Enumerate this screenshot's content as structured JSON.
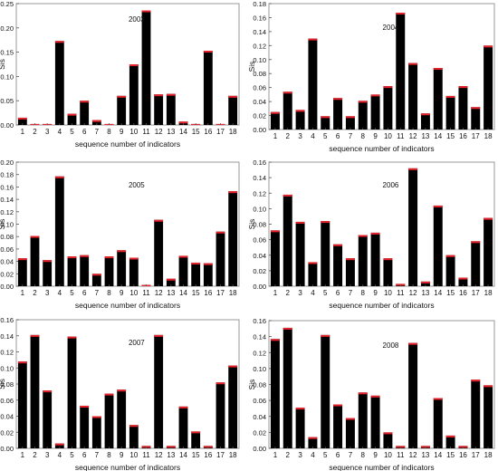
{
  "chart_data": [
    {
      "type": "bar",
      "title": "2003",
      "xlabel": "sequence number of indicators",
      "ylabel": "Sis",
      "categories": [
        "1",
        "2",
        "3",
        "4",
        "5",
        "6",
        "7",
        "8",
        "9",
        "10",
        "11",
        "12",
        "13",
        "14",
        "15",
        "16",
        "17",
        "18"
      ],
      "values": [
        0.015,
        0.002,
        0.002,
        0.173,
        0.023,
        0.05,
        0.01,
        0.002,
        0.06,
        0.125,
        0.236,
        0.063,
        0.064,
        0.007,
        0.002,
        0.153,
        0.002,
        0.06
      ],
      "ylim": [
        0,
        0.25
      ],
      "yticks": [
        "0.00",
        "0.05",
        "0.10",
        "0.15",
        "0.20",
        "0.25"
      ]
    },
    {
      "type": "bar",
      "title": "2004",
      "xlabel": "sequence number of indicators",
      "ylabel": "Sis",
      "categories": [
        "1",
        "2",
        "3",
        "4",
        "5",
        "6",
        "7",
        "8",
        "9",
        "10",
        "11",
        "12",
        "13",
        "14",
        "15",
        "16",
        "17",
        "18"
      ],
      "values": [
        0.025,
        0.054,
        0.028,
        0.13,
        0.019,
        0.045,
        0.019,
        0.041,
        0.05,
        0.062,
        0.167,
        0.095,
        0.023,
        0.088,
        0.048,
        0.062,
        0.032,
        0.12
      ],
      "ylim": [
        0,
        0.18
      ],
      "yticks": [
        "0.00",
        "0.02",
        "0.04",
        "0.06",
        "0.08",
        "0.10",
        "0.12",
        "0.14",
        "0.16",
        "0.18"
      ]
    },
    {
      "type": "bar",
      "title": "2005",
      "xlabel": "sequence number of indicators",
      "ylabel": "Sis",
      "categories": [
        "1",
        "2",
        "3",
        "4",
        "5",
        "6",
        "7",
        "8",
        "9",
        "10",
        "11",
        "12",
        "13",
        "14",
        "15",
        "16",
        "17",
        "18"
      ],
      "values": [
        0.045,
        0.081,
        0.042,
        0.177,
        0.048,
        0.05,
        0.02,
        0.048,
        0.058,
        0.046,
        0.002,
        0.107,
        0.012,
        0.049,
        0.038,
        0.037,
        0.088,
        0.153
      ],
      "ylim": [
        0,
        0.2
      ],
      "yticks": [
        "0.00",
        "0.02",
        "0.04",
        "0.06",
        "0.08",
        "0.10",
        "0.12",
        "0.14",
        "0.16",
        "0.18",
        "0.20"
      ]
    },
    {
      "type": "bar",
      "title": "2006",
      "xlabel": "sequence number of indicators",
      "ylabel": "Sis",
      "categories": [
        "1",
        "2",
        "3",
        "4",
        "5",
        "6",
        "7",
        "8",
        "9",
        "10",
        "11",
        "12",
        "13",
        "14",
        "15",
        "16",
        "17",
        "18"
      ],
      "values": [
        0.072,
        0.118,
        0.083,
        0.031,
        0.084,
        0.054,
        0.036,
        0.066,
        0.069,
        0.036,
        0.003,
        0.152,
        0.006,
        0.104,
        0.04,
        0.011,
        0.058,
        0.088
      ],
      "ylim": [
        0,
        0.16
      ],
      "yticks": [
        "0.00",
        "0.02",
        "0.04",
        "0.06",
        "0.08",
        "0.10",
        "0.12",
        "0.14",
        "0.16"
      ]
    },
    {
      "type": "bar",
      "title": "2007",
      "xlabel": "sequence number of indicators",
      "ylabel": "Sis",
      "categories": [
        "1",
        "2",
        "3",
        "4",
        "5",
        "6",
        "7",
        "8",
        "9",
        "10",
        "11",
        "12",
        "13",
        "14",
        "15",
        "16",
        "17",
        "18"
      ],
      "values": [
        0.108,
        0.141,
        0.072,
        0.006,
        0.139,
        0.053,
        0.04,
        0.068,
        0.073,
        0.029,
        0.003,
        0.141,
        0.003,
        0.052,
        0.021,
        0.003,
        0.082,
        0.103
      ],
      "ylim": [
        0,
        0.16
      ],
      "yticks": [
        "0.00",
        "0.02",
        "0.04",
        "0.06",
        "0.08",
        "0.10",
        "0.12",
        "0.14",
        "0.16"
      ]
    },
    {
      "type": "bar",
      "title": "2008",
      "xlabel": "sequence number of indicators",
      "ylabel": "Sis",
      "categories": [
        "1",
        "2",
        "3",
        "4",
        "5",
        "6",
        "7",
        "8",
        "9",
        "10",
        "11",
        "12",
        "13",
        "14",
        "15",
        "16",
        "17",
        "18"
      ],
      "values": [
        0.137,
        0.151,
        0.051,
        0.014,
        0.142,
        0.055,
        0.038,
        0.07,
        0.066,
        0.02,
        0.003,
        0.132,
        0.003,
        0.063,
        0.016,
        0.003,
        0.086,
        0.079
      ],
      "ylim": [
        0,
        0.16
      ],
      "yticks": [
        "0.00",
        "0.02",
        "0.04",
        "0.06",
        "0.08",
        "0.10",
        "0.12",
        "0.14",
        "0.16"
      ]
    }
  ],
  "colors": {
    "bar": "#000000",
    "bar_top": "#e8232b",
    "frame": "#999999"
  }
}
